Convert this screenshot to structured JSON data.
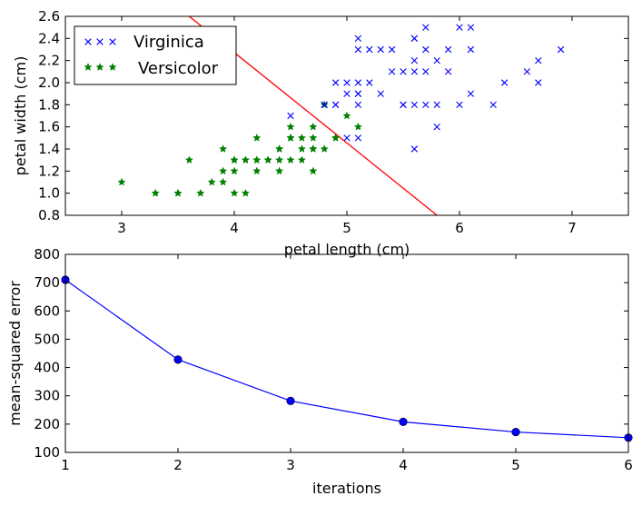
{
  "chart_data": [
    {
      "type": "scatter",
      "title": "",
      "xlabel": "petal length (cm)",
      "ylabel": "petal width (cm)",
      "xlim": [
        2.5,
        7.5
      ],
      "ylim": [
        0.8,
        2.6
      ],
      "xticks": [
        3,
        4,
        5,
        6,
        7
      ],
      "yticks": [
        0.8,
        1.0,
        1.2,
        1.4,
        1.6,
        1.8,
        2.0,
        2.2,
        2.4,
        2.6
      ],
      "grid": false,
      "legend_position": "top-left",
      "series": [
        {
          "name": "Virginica",
          "marker": "x",
          "color": "#0000ff",
          "points": [
            [
              6.0,
              2.5
            ],
            [
              5.1,
              1.9
            ],
            [
              5.9,
              2.1
            ],
            [
              5.6,
              1.8
            ],
            [
              5.8,
              2.2
            ],
            [
              6.6,
              2.1
            ],
            [
              4.5,
              1.7
            ],
            [
              6.3,
              1.8
            ],
            [
              5.8,
              1.8
            ],
            [
              6.1,
              2.5
            ],
            [
              5.1,
              2.0
            ],
            [
              5.3,
              1.9
            ],
            [
              5.5,
              2.1
            ],
            [
              5.0,
              2.0
            ],
            [
              5.1,
              2.4
            ],
            [
              5.3,
              2.3
            ],
            [
              5.5,
              1.8
            ],
            [
              6.7,
              2.2
            ],
            [
              6.9,
              2.3
            ],
            [
              5.0,
              1.5
            ],
            [
              5.7,
              2.3
            ],
            [
              4.9,
              2.0
            ],
            [
              6.7,
              2.0
            ],
            [
              4.9,
              1.8
            ],
            [
              5.7,
              2.1
            ],
            [
              6.0,
              1.8
            ],
            [
              4.8,
              1.8
            ],
            [
              4.9,
              1.8
            ],
            [
              5.6,
              2.1
            ],
            [
              5.8,
              1.6
            ],
            [
              6.1,
              1.9
            ],
            [
              6.4,
              2.0
            ],
            [
              5.6,
              2.2
            ],
            [
              5.1,
              1.5
            ],
            [
              5.6,
              1.4
            ],
            [
              6.1,
              2.3
            ],
            [
              5.6,
              2.4
            ],
            [
              5.5,
              1.8
            ],
            [
              4.8,
              1.8
            ],
            [
              5.4,
              2.1
            ],
            [
              5.6,
              2.4
            ],
            [
              5.1,
              2.3
            ],
            [
              5.1,
              1.9
            ],
            [
              5.9,
              2.3
            ],
            [
              5.7,
              2.5
            ],
            [
              5.2,
              2.3
            ],
            [
              5.0,
              1.9
            ],
            [
              5.2,
              2.0
            ],
            [
              5.4,
              2.3
            ],
            [
              5.1,
              1.8
            ],
            [
              5.7,
              1.8
            ]
          ]
        },
        {
          "name": "Versicolor",
          "marker": "star",
          "color": "#008000",
          "points": [
            [
              4.7,
              1.4
            ],
            [
              4.5,
              1.5
            ],
            [
              4.9,
              1.5
            ],
            [
              4.0,
              1.3
            ],
            [
              4.6,
              1.5
            ],
            [
              4.5,
              1.3
            ],
            [
              4.7,
              1.6
            ],
            [
              3.3,
              1.0
            ],
            [
              4.6,
              1.3
            ],
            [
              3.9,
              1.4
            ],
            [
              3.5,
              1.0
            ],
            [
              4.2,
              1.5
            ],
            [
              4.0,
              1.0
            ],
            [
              4.7,
              1.4
            ],
            [
              3.6,
              1.3
            ],
            [
              4.4,
              1.4
            ],
            [
              4.5,
              1.5
            ],
            [
              4.1,
              1.0
            ],
            [
              4.5,
              1.5
            ],
            [
              3.9,
              1.1
            ],
            [
              4.8,
              1.8
            ],
            [
              4.0,
              1.3
            ],
            [
              4.9,
              1.5
            ],
            [
              4.7,
              1.2
            ],
            [
              4.3,
              1.3
            ],
            [
              4.4,
              1.4
            ],
            [
              4.8,
              1.4
            ],
            [
              5.0,
              1.7
            ],
            [
              4.5,
              1.5
            ],
            [
              3.5,
              1.0
            ],
            [
              3.8,
              1.1
            ],
            [
              3.7,
              1.0
            ],
            [
              3.9,
              1.2
            ],
            [
              5.1,
              1.6
            ],
            [
              4.5,
              1.5
            ],
            [
              4.5,
              1.6
            ],
            [
              4.7,
              1.5
            ],
            [
              4.4,
              1.3
            ],
            [
              4.1,
              1.3
            ],
            [
              4.0,
              1.3
            ],
            [
              4.4,
              1.2
            ],
            [
              4.6,
              1.4
            ],
            [
              4.0,
              1.2
            ],
            [
              3.3,
              1.0
            ],
            [
              4.2,
              1.3
            ],
            [
              4.2,
              1.2
            ],
            [
              4.2,
              1.3
            ],
            [
              4.3,
              1.3
            ],
            [
              3.0,
              1.1
            ],
            [
              4.1,
              1.3
            ]
          ]
        }
      ],
      "decision_line": {
        "color": "#ff0000",
        "points": [
          [
            3.6,
            2.6
          ],
          [
            5.8,
            0.8
          ]
        ]
      }
    },
    {
      "type": "line",
      "title": "",
      "xlabel": "iterations",
      "ylabel": "mean-squared error",
      "xlim": [
        1,
        6
      ],
      "ylim": [
        100,
        800
      ],
      "xticks": [
        1,
        2,
        3,
        4,
        5,
        6
      ],
      "yticks": [
        100,
        200,
        300,
        400,
        500,
        600,
        700,
        800
      ],
      "grid": false,
      "series": [
        {
          "color": "#0000ff",
          "marker": "circle",
          "x": [
            1,
            2,
            3,
            4,
            5,
            6
          ],
          "y": [
            710,
            428,
            282,
            208,
            172,
            152
          ]
        }
      ]
    }
  ]
}
